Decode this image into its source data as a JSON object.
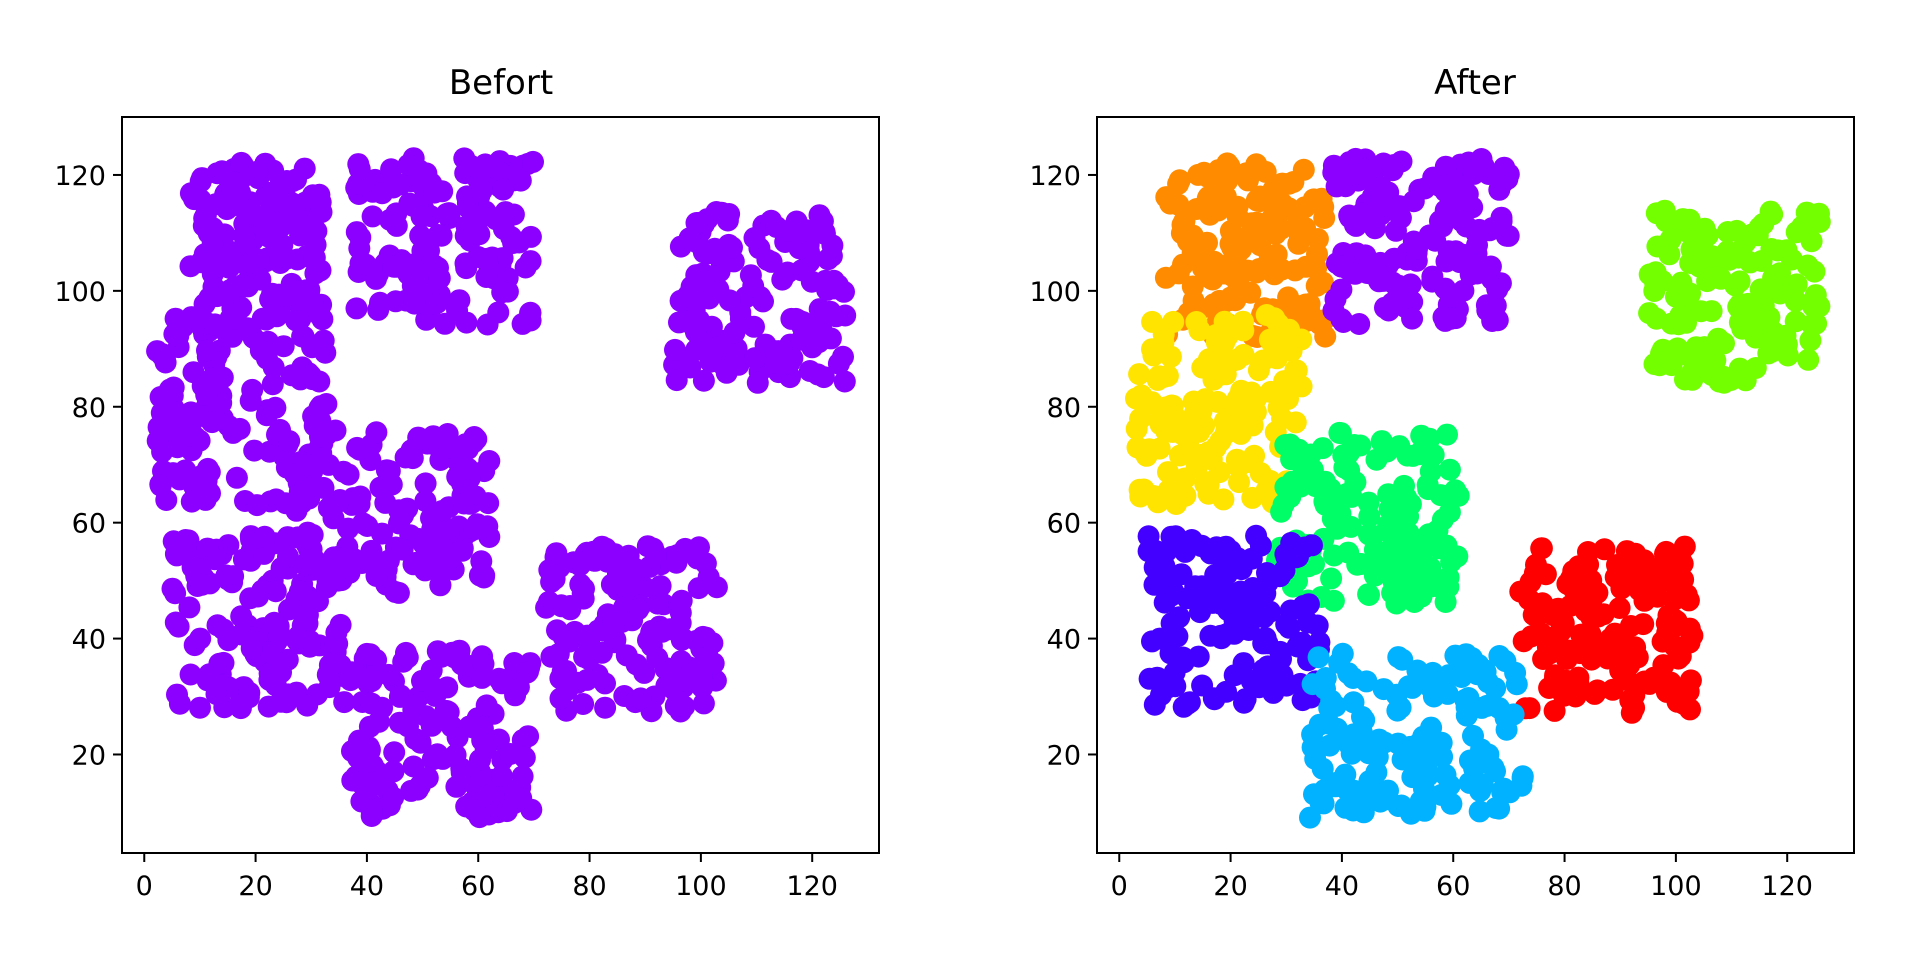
{
  "chart_data": [
    {
      "type": "scatter",
      "title": "Befort",
      "xlim": [
        -4,
        132
      ],
      "ylim": [
        3,
        130
      ],
      "xticks": [
        "0",
        "20",
        "40",
        "60",
        "80",
        "100",
        "120"
      ],
      "yticks": [
        "20",
        "40",
        "60",
        "80",
        "100",
        "120"
      ],
      "grid": false,
      "series": [
        {
          "color": "#8b00ff",
          "regions": [
            {
              "x": [
                8,
                32
              ],
              "y": [
                95,
                123
              ]
            },
            {
              "x": [
                38,
                70
              ],
              "y": [
                94,
                123
              ]
            },
            {
              "x": [
                95,
                126
              ],
              "y": [
                84,
                114
              ]
            },
            {
              "x": [
                2,
                33
              ],
              "y": [
                63,
                96
              ]
            },
            {
              "x": [
                5,
                36
              ],
              "y": [
                28,
                58
              ]
            },
            {
              "x": [
                27,
                62
              ],
              "y": [
                46,
                76
              ]
            },
            {
              "x": [
                72,
                103
              ],
              "y": [
                27,
                56
              ]
            },
            {
              "x": [
                37,
                70
              ],
              "y": [
                9,
                38
              ]
            }
          ]
        }
      ]
    },
    {
      "type": "scatter",
      "title": "After",
      "xlim": [
        -4,
        132
      ],
      "ylim": [
        3,
        130
      ],
      "xticks": [
        "0",
        "20",
        "40",
        "60",
        "80",
        "100",
        "120"
      ],
      "yticks": [
        "20",
        "40",
        "60",
        "80",
        "100",
        "120"
      ],
      "grid": false,
      "series": [
        {
          "color": "#ff8c00",
          "regions": [
            {
              "x": [
                8,
                37
              ],
              "y": [
                92,
                123
              ]
            }
          ]
        },
        {
          "color": "#8b00ff",
          "regions": [
            {
              "x": [
                38,
                70
              ],
              "y": [
                94,
                123
              ]
            }
          ]
        },
        {
          "color": "#73ff00",
          "regions": [
            {
              "x": [
                95,
                126
              ],
              "y": [
                84,
                114
              ]
            }
          ]
        },
        {
          "color": "#ffe400",
          "regions": [
            {
              "x": [
                2,
                33
              ],
              "y": [
                63,
                96
              ]
            }
          ]
        },
        {
          "color": "#00ff66",
          "regions": [
            {
              "x": [
                28,
                61
              ],
              "y": [
                46,
                76
              ]
            }
          ]
        },
        {
          "color": "#4400ff",
          "regions": [
            {
              "x": [
                5,
                36
              ],
              "y": [
                28,
                58
              ]
            }
          ]
        },
        {
          "color": "#ff0000",
          "regions": [
            {
              "x": [
                72,
                103
              ],
              "y": [
                27,
                56
              ]
            }
          ]
        },
        {
          "color": "#00b2ff",
          "regions": [
            {
              "x": [
                34,
                73
              ],
              "y": [
                9,
                38
              ]
            }
          ]
        }
      ]
    }
  ]
}
